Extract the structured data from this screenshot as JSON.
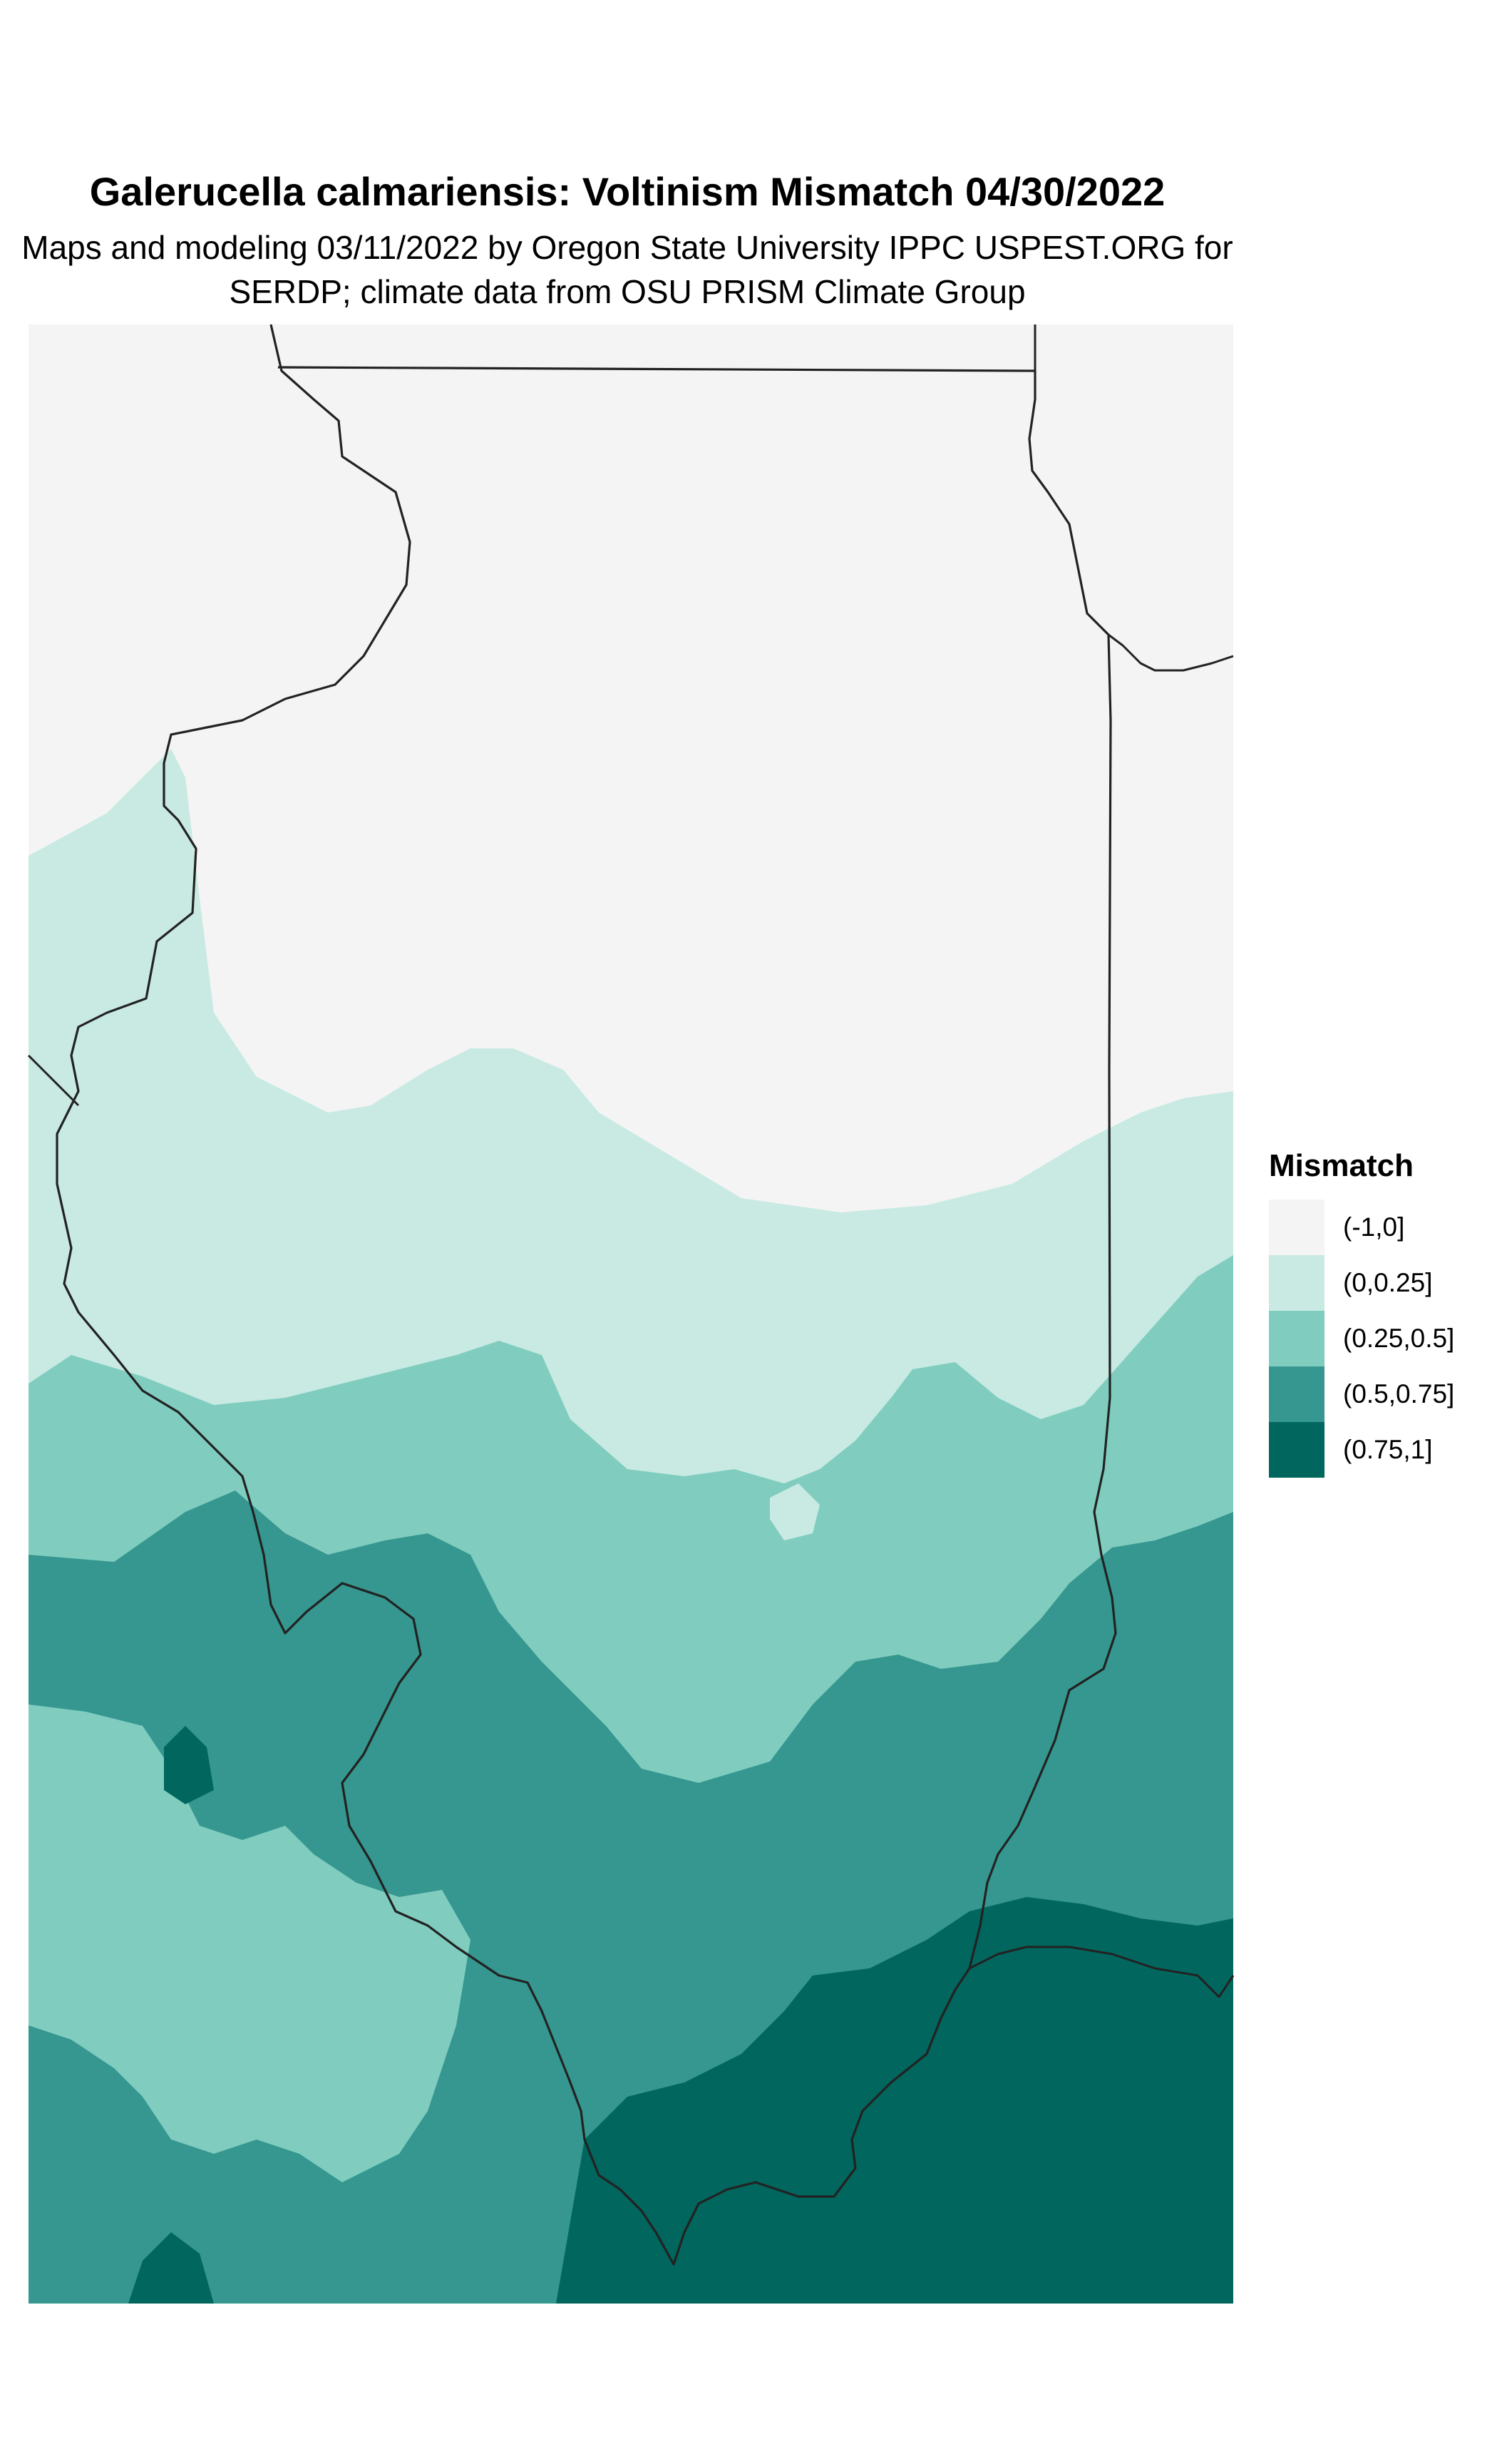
{
  "title": "Galerucella calmariensis: Voltinism Mismatch 04/30/2022",
  "subtitle_line1": "Maps and modeling 03/11/2022 by Oregon State University IPPC USPEST.ORG for",
  "subtitle_line2": "SERDP; climate data from OSU PRISM Climate Group",
  "legend": {
    "title": "Mismatch",
    "classes": [
      {
        "label": "(-1,0]",
        "color": "#f4f4f4"
      },
      {
        "label": "(0,0.25]",
        "color": "#c8eae2"
      },
      {
        "label": "(0.25,0.5]",
        "color": "#80cdc0"
      },
      {
        "label": "(0.5,0.75]",
        "color": "#35978f"
      },
      {
        "label": "(0.75,1]",
        "color": "#01665e"
      }
    ]
  },
  "map": {
    "region": "Illinois",
    "boundary_color": "#222222"
  }
}
